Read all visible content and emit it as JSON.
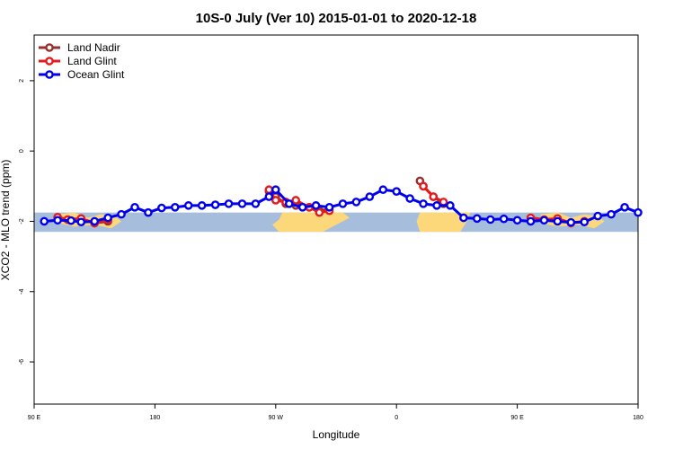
{
  "chart_data": {
    "type": "line",
    "title": "10S-0 July (Ver 10)   2015-01-01 to 2020-12-18",
    "xlabel": "Longitude",
    "ylabel": "XCO2 - MLO trend (ppm)",
    "xlim": [
      -270,
      -90
    ],
    "ylim": [
      -7.2,
      3.3
    ],
    "x_ticks": [
      {
        "value": -270,
        "label": "90 E"
      },
      {
        "value": -234,
        "label": "180"
      },
      {
        "value": -198,
        "label": "90 W"
      },
      {
        "value": -162,
        "label": "0"
      },
      {
        "value": -126,
        "label": "90 E"
      },
      {
        "value": -90,
        "label": "180"
      }
    ],
    "y_ticks": [
      {
        "value": 2,
        "label": "2"
      },
      {
        "value": 0,
        "label": "0"
      },
      {
        "value": -2,
        "label": "-2"
      },
      {
        "value": -4,
        "label": "-4"
      },
      {
        "value": -6,
        "label": "-6"
      }
    ],
    "legend_position": "top-left",
    "background_band": {
      "lat_range": "10S-0",
      "y_range": [
        -2.3,
        -1.75
      ],
      "ocean_color": "#a6bddb",
      "land_color": "#fdd87a"
    },
    "series": [
      {
        "name": "Land Nadir",
        "color": "#9b2d2d",
        "points": [
          [
            -263,
            -1.9
          ],
          [
            -260,
            -1.95
          ],
          [
            -256,
            -1.93
          ],
          [
            -252,
            -2.05
          ],
          [
            -248,
            -2.0
          ],
          [
            -200,
            -1.15
          ],
          [
            -198,
            -1.3
          ],
          [
            -195,
            -1.5
          ],
          [
            -192,
            -1.55
          ],
          [
            -188,
            -1.6
          ],
          [
            -185,
            -1.7
          ],
          [
            -182,
            -1.65
          ],
          [
            -155,
            -0.85
          ],
          [
            -154,
            -1.0
          ],
          [
            -151,
            -1.3
          ],
          [
            -148,
            -1.5
          ]
        ]
      },
      {
        "name": "Land Glint",
        "color": "#e41a1c",
        "points": [
          [
            -263,
            -1.88
          ],
          [
            -260,
            -1.95
          ],
          [
            -256,
            -1.92
          ],
          [
            -252,
            -2.05
          ],
          [
            -248,
            -1.95
          ],
          [
            -200,
            -1.1
          ],
          [
            -198,
            -1.4
          ],
          [
            -195,
            -1.45
          ],
          [
            -192,
            -1.4
          ],
          [
            -188,
            -1.6
          ],
          [
            -185,
            -1.75
          ],
          [
            -182,
            -1.7
          ],
          [
            -154,
            -1.0
          ],
          [
            -151,
            -1.3
          ],
          [
            -148,
            -1.45
          ],
          [
            -122,
            -1.9
          ],
          [
            -118,
            -1.95
          ],
          [
            -114,
            -1.92
          ],
          [
            -110,
            -2.05
          ],
          [
            -106,
            -2.0
          ]
        ]
      },
      {
        "name": "Ocean Glint",
        "color": "#0000ee",
        "points": [
          [
            -267,
            -2.0
          ],
          [
            -263,
            -1.97
          ],
          [
            -259,
            -1.98
          ],
          [
            -256,
            -2.02
          ],
          [
            -252,
            -2.0
          ],
          [
            -248,
            -1.9
          ],
          [
            -244,
            -1.8
          ],
          [
            -240,
            -1.6
          ],
          [
            -236,
            -1.75
          ],
          [
            -232,
            -1.62
          ],
          [
            -228,
            -1.6
          ],
          [
            -224,
            -1.55
          ],
          [
            -220,
            -1.55
          ],
          [
            -216,
            -1.53
          ],
          [
            -212,
            -1.5
          ],
          [
            -208,
            -1.5
          ],
          [
            -204,
            -1.5
          ],
          [
            -200,
            -1.3
          ],
          [
            -198,
            -1.1
          ],
          [
            -194,
            -1.5
          ],
          [
            -190,
            -1.6
          ],
          [
            -186,
            -1.55
          ],
          [
            -182,
            -1.6
          ],
          [
            -178,
            -1.5
          ],
          [
            -174,
            -1.45
          ],
          [
            -170,
            -1.3
          ],
          [
            -166,
            -1.1
          ],
          [
            -162,
            -1.15
          ],
          [
            -158,
            -1.35
          ],
          [
            -154,
            -1.5
          ],
          [
            -150,
            -1.55
          ],
          [
            -146,
            -1.55
          ],
          [
            -142,
            -1.9
          ],
          [
            -138,
            -1.92
          ],
          [
            -134,
            -1.95
          ],
          [
            -130,
            -1.93
          ],
          [
            -126,
            -1.97
          ],
          [
            -122,
            -2.0
          ],
          [
            -118,
            -1.97
          ],
          [
            -114,
            -2.0
          ],
          [
            -110,
            -2.03
          ],
          [
            -106,
            -2.02
          ],
          [
            -102,
            -1.85
          ],
          [
            -98,
            -1.8
          ],
          [
            -94,
            -1.6
          ],
          [
            -90,
            -1.75
          ]
        ]
      }
    ]
  }
}
